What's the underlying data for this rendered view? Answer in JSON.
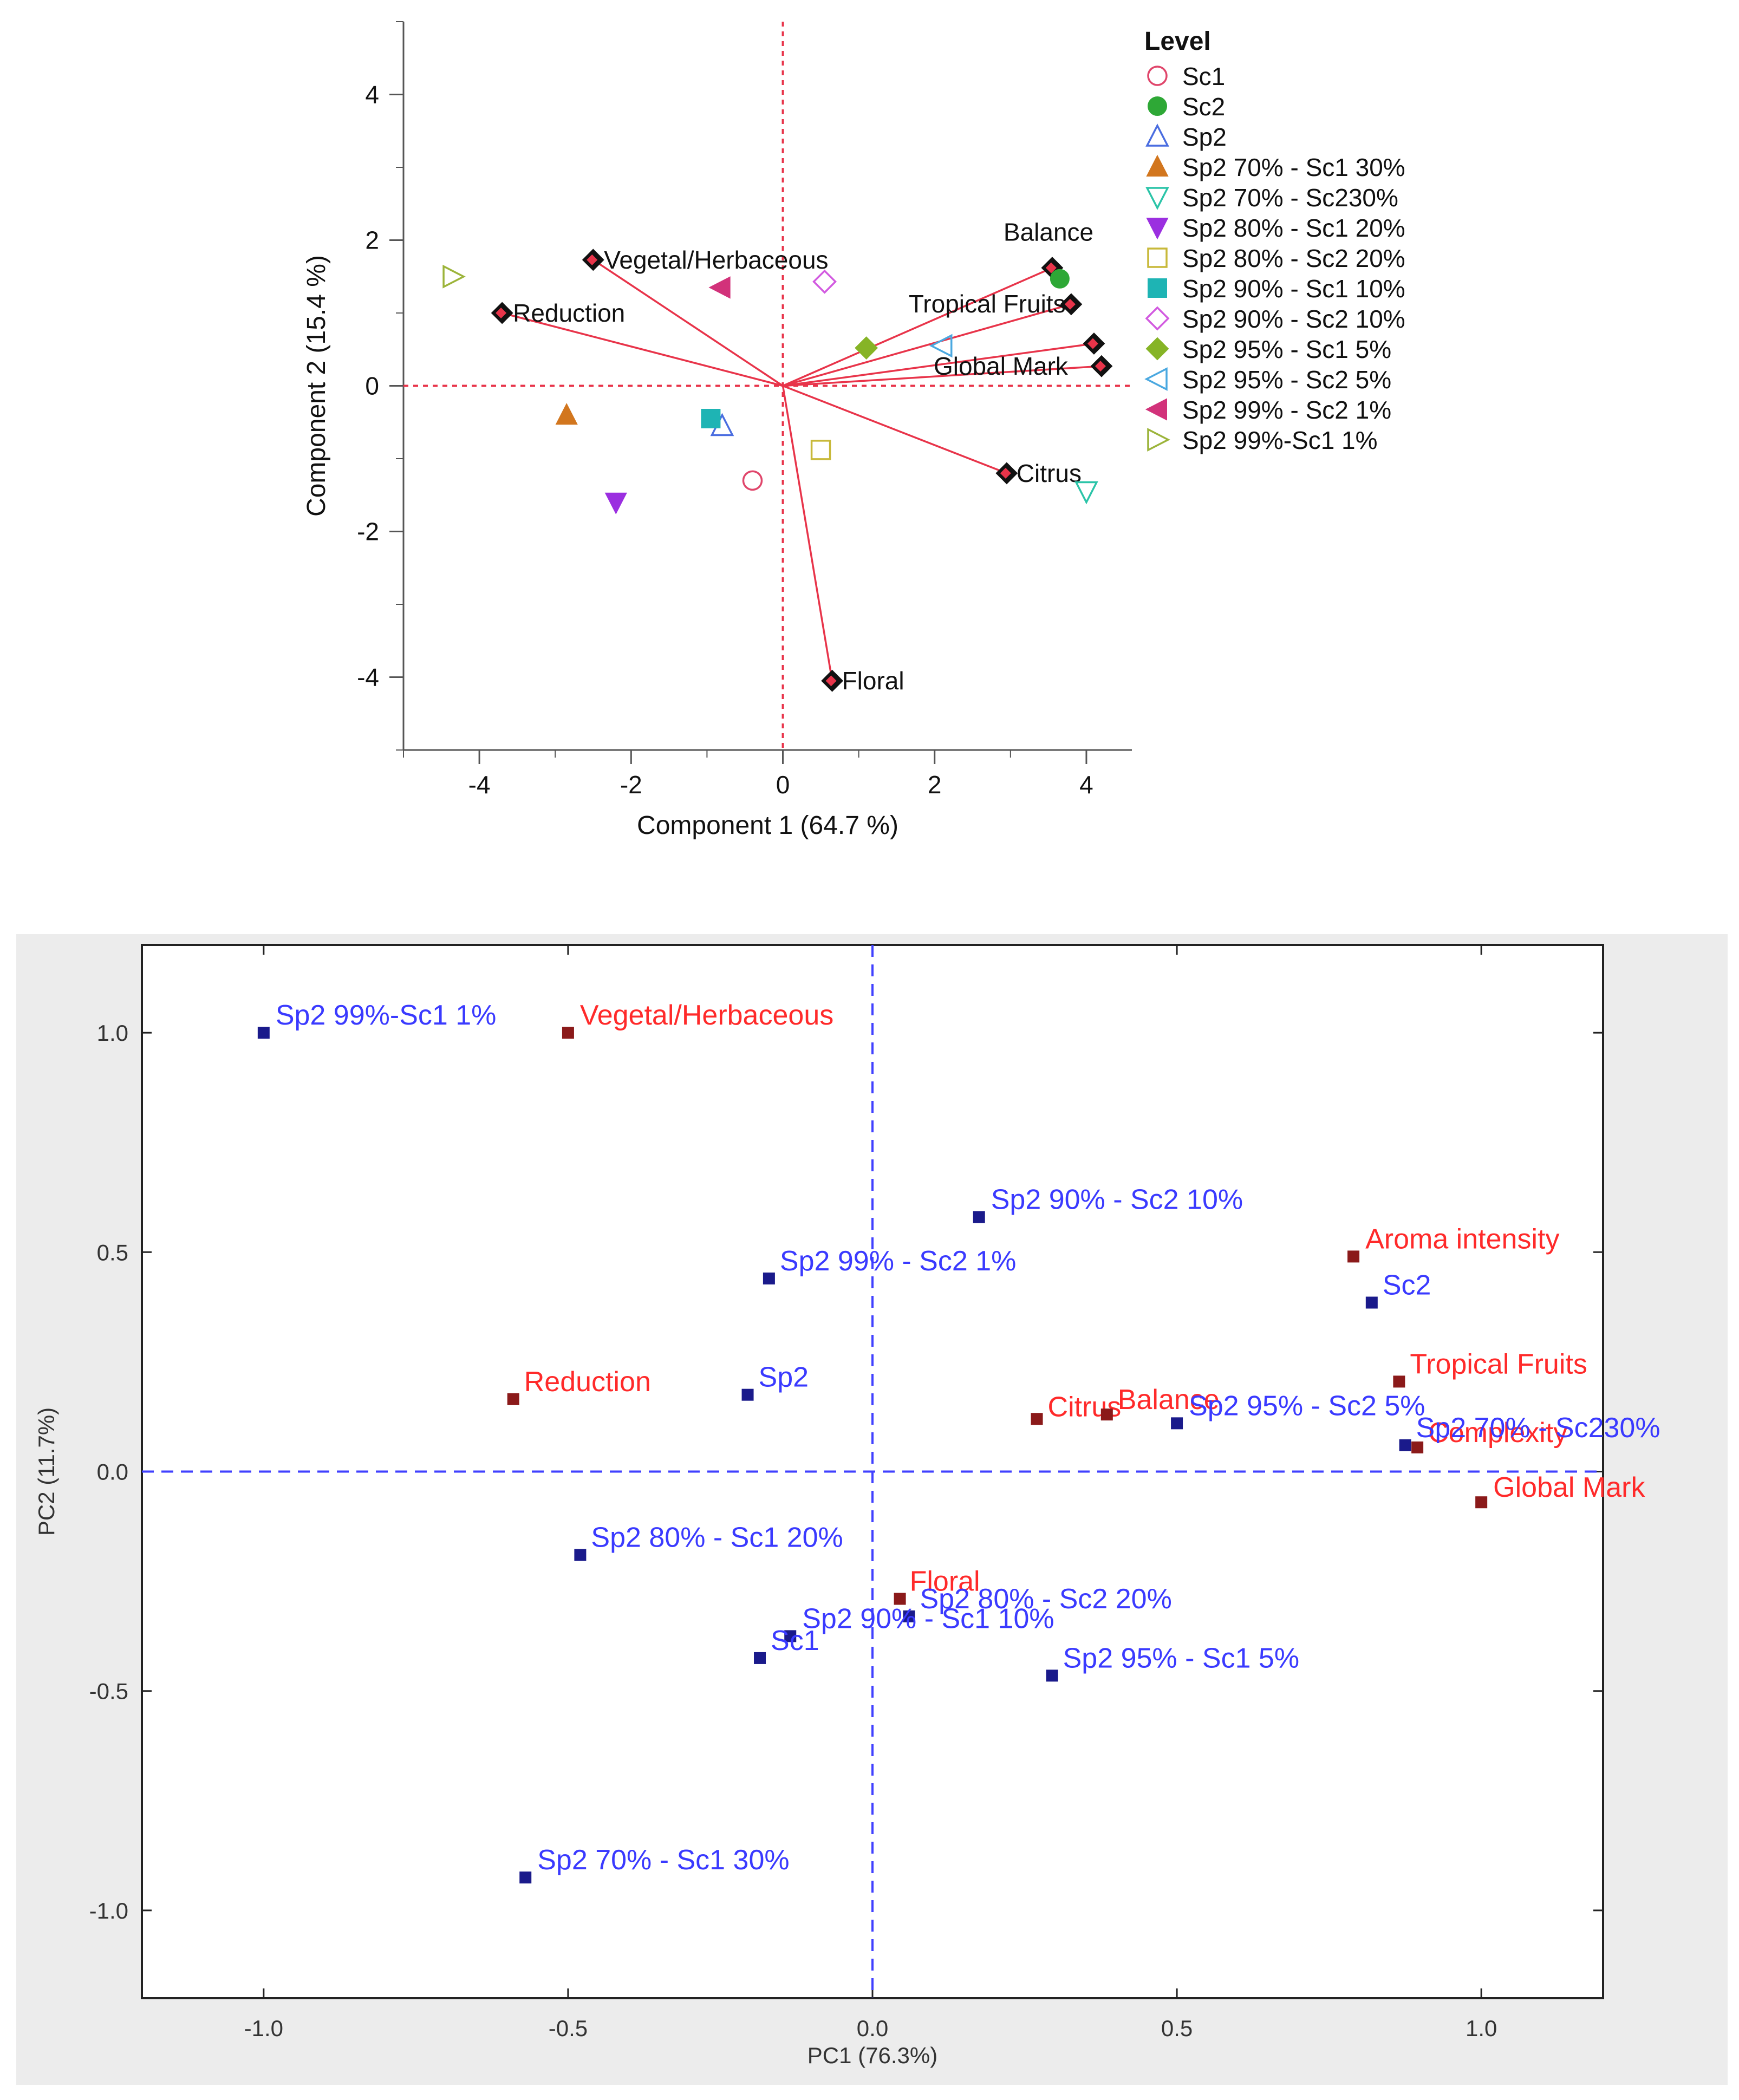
{
  "chart_data": [
    {
      "type": "biplot",
      "xlabel": "Component 1  (64.7 %)",
      "ylabel": "Component 2  (15.4 %)",
      "xlim": [
        -5.0,
        4.6
      ],
      "ylim": [
        -5.0,
        5.0
      ],
      "xticks": [
        -4,
        -2,
        0,
        2,
        4
      ],
      "yticks": [
        -4,
        -2,
        0,
        2,
        4
      ],
      "xtick_labels": [
        "-4",
        "-2",
        "0",
        "2",
        "4"
      ],
      "ytick_labels": [
        "-4",
        "-2",
        "0",
        "2",
        "4"
      ],
      "legend_title": "Level",
      "legend_position": "right",
      "samples": [
        {
          "name": "Sc1",
          "x": -0.4,
          "y": -1.3,
          "marker": "circle-open",
          "color": "#e0466b"
        },
        {
          "name": "Sc2",
          "x": 3.65,
          "y": 1.47,
          "marker": "circle-filled",
          "color": "#2ea836"
        },
        {
          "name": "Sp2",
          "x": -0.8,
          "y": -0.55,
          "marker": "triangle-up-open",
          "color": "#4a6de0"
        },
        {
          "name": "Sp2 70% - Sc1 30%",
          "x": -2.85,
          "y": -0.4,
          "marker": "triangle-up-filled",
          "color": "#d2761e"
        },
        {
          "name": "Sp2 70% - Sc230%",
          "x": 4.0,
          "y": -1.45,
          "marker": "triangle-down-open",
          "color": "#2bc4a8"
        },
        {
          "name": "Sp2 80% - Sc1 20%",
          "x": -2.2,
          "y": -1.6,
          "marker": "triangle-down-filled",
          "color": "#9b2fe0"
        },
        {
          "name": "Sp2 80% - Sc2 20%",
          "x": 0.5,
          "y": -0.88,
          "marker": "square-open",
          "color": "#c8b93a"
        },
        {
          "name": "Sp2 90% - Sc1 10%",
          "x": -0.95,
          "y": -0.45,
          "marker": "square-filled",
          "color": "#1eb4b4"
        },
        {
          "name": "Sp2 90% - Sc2 10%",
          "x": 0.55,
          "y": 1.43,
          "marker": "diamond-open",
          "color": "#d25ae0"
        },
        {
          "name": "Sp2 95% - Sc1 5%",
          "x": 1.1,
          "y": 0.52,
          "marker": "diamond-filled",
          "color": "#86b426"
        },
        {
          "name": "Sp2 95% - Sc2 5%",
          "x": 2.1,
          "y": 0.55,
          "marker": "triangle-left-open",
          "color": "#4aa8e0"
        },
        {
          "name": "Sp2 99% - Sc2 1%",
          "x": -0.82,
          "y": 1.35,
          "marker": "triangle-left-filled",
          "color": "#d2327a"
        },
        {
          "name": "Sp2 99%-Sc1 1%",
          "x": -4.35,
          "y": 1.5,
          "marker": "triangle-right-open",
          "color": "#9cb43a"
        }
      ],
      "loadings": [
        {
          "name": "Vegetal/Herbaceous",
          "x": -2.5,
          "y": 1.73
        },
        {
          "name": "Reduction",
          "x": -3.7,
          "y": 1.0
        },
        {
          "name": "Balance",
          "x": 3.55,
          "y": 1.62
        },
        {
          "name": "Tropical Fruits",
          "x": 3.8,
          "y": 1.12
        },
        {
          "name": "Global Mark",
          "x": 4.2,
          "y": 0.27
        },
        {
          "name": "Citrus",
          "x": 2.95,
          "y": -1.2
        },
        {
          "name": "Floral",
          "x": 0.65,
          "y": -4.05
        }
      ],
      "hidden_loading": {
        "x": 4.1,
        "y": 0.58
      }
    },
    {
      "type": "scatter",
      "xlabel": "PC1 (76.3%)",
      "ylabel": "PC2 (11.7%)",
      "xlim": [
        -1.2,
        1.2
      ],
      "ylim": [
        -1.2,
        1.2
      ],
      "xticks": [
        -1.0,
        -0.5,
        0.0,
        0.5,
        1.0
      ],
      "yticks": [
        -1.0,
        -0.5,
        0.0,
        0.5,
        1.0
      ],
      "xtick_labels": [
        "-1.0",
        "-0.5",
        "0.0",
        "0.5",
        "1.0"
      ],
      "ytick_labels": [
        "-1.0",
        "-0.5",
        "0.0",
        "0.5",
        "1.0"
      ],
      "samples": [
        {
          "name": "Sp2 99%-Sc1 1%",
          "x": -1.0,
          "y": 1.0
        },
        {
          "name": "Sp2 90% - Sc2 10%",
          "x": 0.175,
          "y": 0.58
        },
        {
          "name": "Sp2 99% - Sc2 1%",
          "x": -0.17,
          "y": 0.44
        },
        {
          "name": "Sc2",
          "x": 0.82,
          "y": 0.385
        },
        {
          "name": "Sp2",
          "x": -0.205,
          "y": 0.175
        },
        {
          "name": "Sp2 95% - Sc2 5%",
          "x": 0.5,
          "y": 0.11
        },
        {
          "name": "Sp2 70% - Sc230%",
          "x": 0.875,
          "y": 0.06
        },
        {
          "name": "Sp2 80% - Sc1 20%",
          "x": -0.48,
          "y": -0.19
        },
        {
          "name": "Sp2 80% - Sc2 20%",
          "x": 0.06,
          "y": -0.33
        },
        {
          "name": "Sp2 90% - Sc1 10%",
          "x": -0.135,
          "y": -0.375
        },
        {
          "name": "Sc1",
          "x": -0.185,
          "y": -0.425
        },
        {
          "name": "Sp2 95% - Sc1 5%",
          "x": 0.295,
          "y": -0.465
        },
        {
          "name": "Sp2 70% - Sc1 30%",
          "x": -0.57,
          "y": -0.925
        }
      ],
      "variables": [
        {
          "name": "Vegetal/Herbaceous",
          "x": -0.5,
          "y": 1.0
        },
        {
          "name": "Aroma intensity",
          "x": 0.79,
          "y": 0.49
        },
        {
          "name": "Reduction",
          "x": -0.59,
          "y": 0.165
        },
        {
          "name": "Tropical Fruits",
          "x": 0.865,
          "y": 0.205
        },
        {
          "name": "Citrus",
          "x": 0.27,
          "y": 0.12
        },
        {
          "name": "Balance",
          "x": 0.385,
          "y": 0.13
        },
        {
          "name": "Complexity",
          "x": 0.895,
          "y": 0.055
        },
        {
          "name": "Global Mark",
          "x": 1.0,
          "y": -0.07
        },
        {
          "name": "Floral",
          "x": 0.045,
          "y": -0.29
        }
      ],
      "sample_color": "#3a3aff",
      "variable_color": "#ff2a2a"
    }
  ]
}
